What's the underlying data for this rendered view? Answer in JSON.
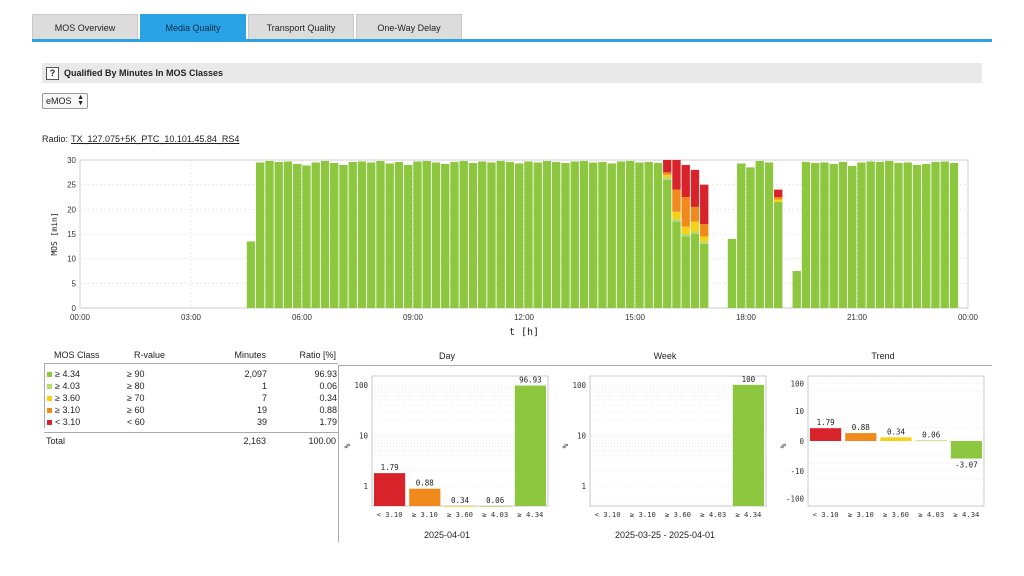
{
  "tabs": [
    {
      "label": "MOS Overview",
      "active": false
    },
    {
      "label": "Media Quality",
      "active": true
    },
    {
      "label": "Transport Quality",
      "active": false
    },
    {
      "label": "One-Way Delay",
      "active": false
    }
  ],
  "section": {
    "help": "?",
    "title": "Qualified By Minutes In MOS Classes"
  },
  "select": {
    "value": "eMOS",
    "options": [
      "eMOS"
    ]
  },
  "radio": {
    "label": "Radio:",
    "name": "TX_127.075+5K_PTC_10.101.45.84_RS4"
  },
  "colors": {
    "excellent": "#8dc63f",
    "good": "#b5d96a",
    "fair": "#f7d117",
    "poor": "#f08a1c",
    "bad": "#d8232a",
    "accent": "#29a3e6"
  },
  "chart_data": [
    {
      "type": "bar",
      "stacked": true,
      "ylabel": "MOS [min]",
      "xlabel": "t [h]",
      "ylim": [
        0,
        30
      ],
      "yticks": [
        0,
        5,
        10,
        15,
        20,
        25,
        30
      ],
      "xticks": [
        "00:00",
        "03:00",
        "06:00",
        "09:00",
        "12:00",
        "15:00",
        "18:00",
        "21:00",
        "00:00"
      ],
      "x_start_hour": 0,
      "x_end_hour": 24,
      "bin_minutes": 15,
      "grid": true,
      "segments_order": [
        "excellent",
        "good",
        "fair",
        "poor",
        "bad"
      ],
      "bars": [
        {
          "hour": 4.5,
          "excellent": 13.5
        },
        {
          "hour": 4.75,
          "excellent": 29.5
        },
        {
          "hour": 5.0,
          "excellent": 29.8
        },
        {
          "hour": 5.25,
          "excellent": 29.6
        },
        {
          "hour": 5.5,
          "excellent": 29.7
        },
        {
          "hour": 5.75,
          "excellent": 29.2
        },
        {
          "hour": 6.0,
          "excellent": 28.9
        },
        {
          "hour": 6.25,
          "excellent": 29.5
        },
        {
          "hour": 6.5,
          "excellent": 29.8
        },
        {
          "hour": 6.75,
          "excellent": 29.4
        },
        {
          "hour": 7.0,
          "excellent": 29.0
        },
        {
          "hour": 7.25,
          "excellent": 29.6
        },
        {
          "hour": 7.5,
          "excellent": 29.7
        },
        {
          "hour": 7.75,
          "excellent": 29.5
        },
        {
          "hour": 8.0,
          "excellent": 29.8
        },
        {
          "hour": 8.25,
          "excellent": 29.3
        },
        {
          "hour": 8.5,
          "excellent": 29.6
        },
        {
          "hour": 8.75,
          "excellent": 29.0
        },
        {
          "hour": 9.0,
          "excellent": 29.7
        },
        {
          "hour": 9.25,
          "excellent": 29.8
        },
        {
          "hour": 9.5,
          "excellent": 29.5
        },
        {
          "hour": 9.75,
          "excellent": 29.2
        },
        {
          "hour": 10.0,
          "excellent": 29.6
        },
        {
          "hour": 10.25,
          "excellent": 29.8
        },
        {
          "hour": 10.5,
          "excellent": 29.4
        },
        {
          "hour": 10.75,
          "excellent": 29.7
        },
        {
          "hour": 11.0,
          "excellent": 29.5
        },
        {
          "hour": 11.25,
          "excellent": 29.8
        },
        {
          "hour": 11.5,
          "excellent": 29.6
        },
        {
          "hour": 11.75,
          "excellent": 29.3
        },
        {
          "hour": 12.0,
          "excellent": 29.7
        },
        {
          "hour": 12.25,
          "excellent": 29.5
        },
        {
          "hour": 12.5,
          "excellent": 29.8
        },
        {
          "hour": 12.75,
          "excellent": 29.6
        },
        {
          "hour": 13.0,
          "excellent": 29.4
        },
        {
          "hour": 13.25,
          "excellent": 29.7
        },
        {
          "hour": 13.5,
          "excellent": 29.8
        },
        {
          "hour": 13.75,
          "excellent": 29.5
        },
        {
          "hour": 14.0,
          "excellent": 29.6
        },
        {
          "hour": 14.25,
          "excellent": 29.3
        },
        {
          "hour": 14.5,
          "excellent": 29.7
        },
        {
          "hour": 14.75,
          "excellent": 29.8
        },
        {
          "hour": 15.0,
          "excellent": 29.5
        },
        {
          "hour": 15.25,
          "excellent": 29.6
        },
        {
          "hour": 15.5,
          "excellent": 29.4
        },
        {
          "hour": 15.75,
          "excellent": 26.0,
          "good": 0.5,
          "fair": 0.5,
          "poor": 0.5,
          "bad": 2.5
        },
        {
          "hour": 16.0,
          "excellent": 17.5,
          "good": 0.5,
          "fair": 1.5,
          "poor": 4.5,
          "bad": 6.0
        },
        {
          "hour": 16.25,
          "excellent": 14.5,
          "good": 0.5,
          "fair": 1.5,
          "poor": 6.0,
          "bad": 6.5
        },
        {
          "hour": 16.5,
          "excellent": 15.0,
          "good": 0.5,
          "fair": 2.0,
          "poor": 3.0,
          "bad": 7.5
        },
        {
          "hour": 16.75,
          "excellent": 13.0,
          "good": 0.5,
          "fair": 1.0,
          "poor": 2.5,
          "bad": 8.0
        },
        {
          "hour": 17.5,
          "excellent": 14.0
        },
        {
          "hour": 17.75,
          "excellent": 29.3
        },
        {
          "hour": 18.0,
          "excellent": 28.5
        },
        {
          "hour": 18.25,
          "excellent": 29.8
        },
        {
          "hour": 18.5,
          "excellent": 29.5
        },
        {
          "hour": 18.75,
          "excellent": 21.5,
          "fair": 0.5,
          "poor": 0.5,
          "bad": 1.5
        },
        {
          "hour": 19.25,
          "excellent": 7.5
        },
        {
          "hour": 19.5,
          "excellent": 29.6
        },
        {
          "hour": 19.75,
          "excellent": 29.4
        },
        {
          "hour": 20.0,
          "excellent": 29.5
        },
        {
          "hour": 20.25,
          "excellent": 29.2
        },
        {
          "hour": 20.5,
          "excellent": 29.6
        },
        {
          "hour": 20.75,
          "excellent": 28.8
        },
        {
          "hour": 21.0,
          "excellent": 29.5
        },
        {
          "hour": 21.25,
          "excellent": 29.7
        },
        {
          "hour": 21.5,
          "excellent": 29.6
        },
        {
          "hour": 21.75,
          "excellent": 29.8
        },
        {
          "hour": 22.0,
          "excellent": 29.4
        },
        {
          "hour": 22.25,
          "excellent": 29.5
        },
        {
          "hour": 22.5,
          "excellent": 29.0
        },
        {
          "hour": 22.75,
          "excellent": 29.2
        },
        {
          "hour": 23.0,
          "excellent": 29.6
        },
        {
          "hour": 23.25,
          "excellent": 29.7
        },
        {
          "hour": 23.5,
          "excellent": 29.4
        }
      ]
    },
    {
      "type": "bar",
      "title": "Day",
      "ylabel": "%",
      "yscale": "log",
      "yticks": [
        1,
        10,
        100
      ],
      "categories": [
        "< 3.10",
        "≥ 3.10",
        "≥ 3.60",
        "≥ 4.03",
        "≥ 4.34"
      ],
      "values": [
        1.79,
        0.88,
        0.34,
        0.06,
        96.93
      ],
      "labels": [
        "1.79",
        "0.88",
        "0.34",
        "0.06",
        "96.93"
      ],
      "colors": [
        "#d8232a",
        "#f08a1c",
        "#f7d117",
        "#b5d96a",
        "#8dc63f"
      ],
      "date": "2025-04-01"
    },
    {
      "type": "bar",
      "title": "Week",
      "ylabel": "%",
      "yscale": "log",
      "yticks": [
        1,
        10,
        100
      ],
      "categories": [
        "< 3.10",
        "≥ 3.10",
        "≥ 3.60",
        "≥ 4.03",
        "≥ 4.34"
      ],
      "values": [
        null,
        null,
        null,
        null,
        100
      ],
      "labels": [
        "",
        "",
        "",
        "",
        "100"
      ],
      "colors": [
        "#d8232a",
        "#f08a1c",
        "#f7d117",
        "#b5d96a",
        "#8dc63f"
      ],
      "date": "2025-03-25 - 2025-04-01"
    },
    {
      "type": "bar",
      "title": "Trend",
      "ylabel": "%",
      "yscale": "symlog",
      "yticks": [
        -100,
        -10,
        0,
        10,
        100
      ],
      "categories": [
        "< 3.10",
        "≥ 3.10",
        "≥ 3.60",
        "≥ 4.03",
        "≥ 4.34"
      ],
      "values": [
        1.79,
        0.88,
        0.34,
        0.06,
        -3.07
      ],
      "labels": [
        "1.79",
        "0.88",
        "0.34",
        "0.06",
        "-3.07"
      ],
      "colors": [
        "#d8232a",
        "#f08a1c",
        "#f7d117",
        "#b5d96a",
        "#8dc63f"
      ]
    }
  ],
  "table": {
    "headers": {
      "mos_class": "MOS Class",
      "r_value": "R-value",
      "minutes": "Minutes",
      "ratio": "Ratio [%]"
    },
    "rows": [
      {
        "mos_class": "≥ 4.34",
        "r_value": "≥ 90",
        "minutes": "2,097",
        "ratio": "96.93",
        "color": "#8dc63f"
      },
      {
        "mos_class": "≥ 4.03",
        "r_value": "≥ 80",
        "minutes": "1",
        "ratio": "0.06",
        "color": "#b5d96a"
      },
      {
        "mos_class": "≥ 3.60",
        "r_value": "≥ 70",
        "minutes": "7",
        "ratio": "0.34",
        "color": "#f7d117"
      },
      {
        "mos_class": "≥ 3.10",
        "r_value": "≥ 60",
        "minutes": "19",
        "ratio": "0.88",
        "color": "#f08a1c"
      },
      {
        "mos_class": "< 3.10",
        "r_value": "< 60",
        "minutes": "39",
        "ratio": "1.79",
        "color": "#d8232a"
      }
    ],
    "total": {
      "label": "Total",
      "minutes": "2,163",
      "ratio": "100.00"
    }
  }
}
